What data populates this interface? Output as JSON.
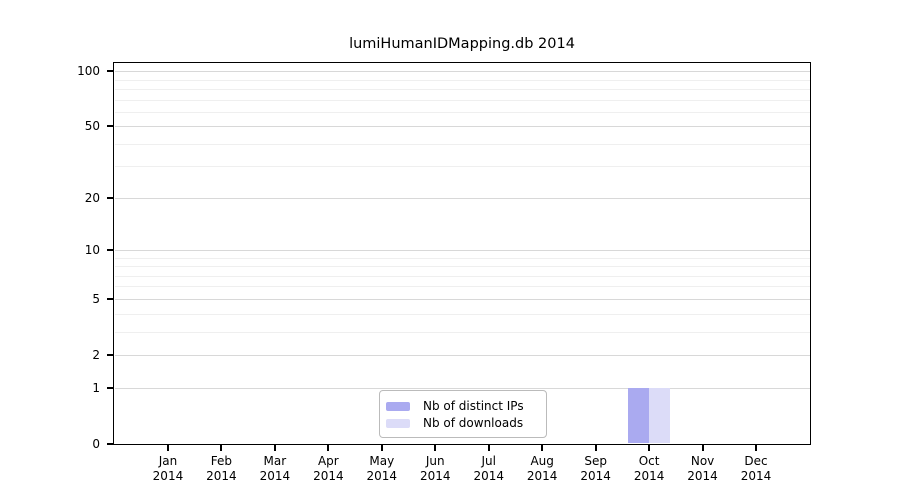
{
  "chart_data": {
    "type": "bar",
    "title": "lumiHumanIDMapping.db 2014",
    "categories": [
      "Jan",
      "Feb",
      "Mar",
      "Apr",
      "May",
      "Jun",
      "Jul",
      "Aug",
      "Sep",
      "Oct",
      "Nov",
      "Dec"
    ],
    "category_year": "2014",
    "series": [
      {
        "name": "Nb of distinct IPs",
        "color": "#aaaaf0",
        "values": [
          0,
          0,
          0,
          0,
          0,
          0,
          0,
          0,
          0,
          1,
          0,
          0
        ]
      },
      {
        "name": "Nb of downloads",
        "color": "#dcdcf8",
        "values": [
          0,
          0,
          0,
          0,
          0,
          0,
          0,
          0,
          0,
          1,
          0,
          0
        ]
      }
    ],
    "yscale": "log1p",
    "ylim": [
      0,
      110
    ],
    "y_major_ticks": [
      0,
      1,
      2,
      5,
      10,
      20,
      50,
      100
    ],
    "y_minor_ticks": [
      3,
      4,
      6,
      7,
      8,
      9,
      30,
      40,
      60,
      70,
      80,
      90
    ],
    "xlabel": "",
    "ylabel": "",
    "grid": "horizontal",
    "legend_position": "inside-bottom-center",
    "colors": {
      "major_grid": "#d8d8d8",
      "minor_grid": "#efefef",
      "axis": "#000000",
      "legend_border": "#bbbbbb",
      "background": "#ffffff"
    }
  }
}
